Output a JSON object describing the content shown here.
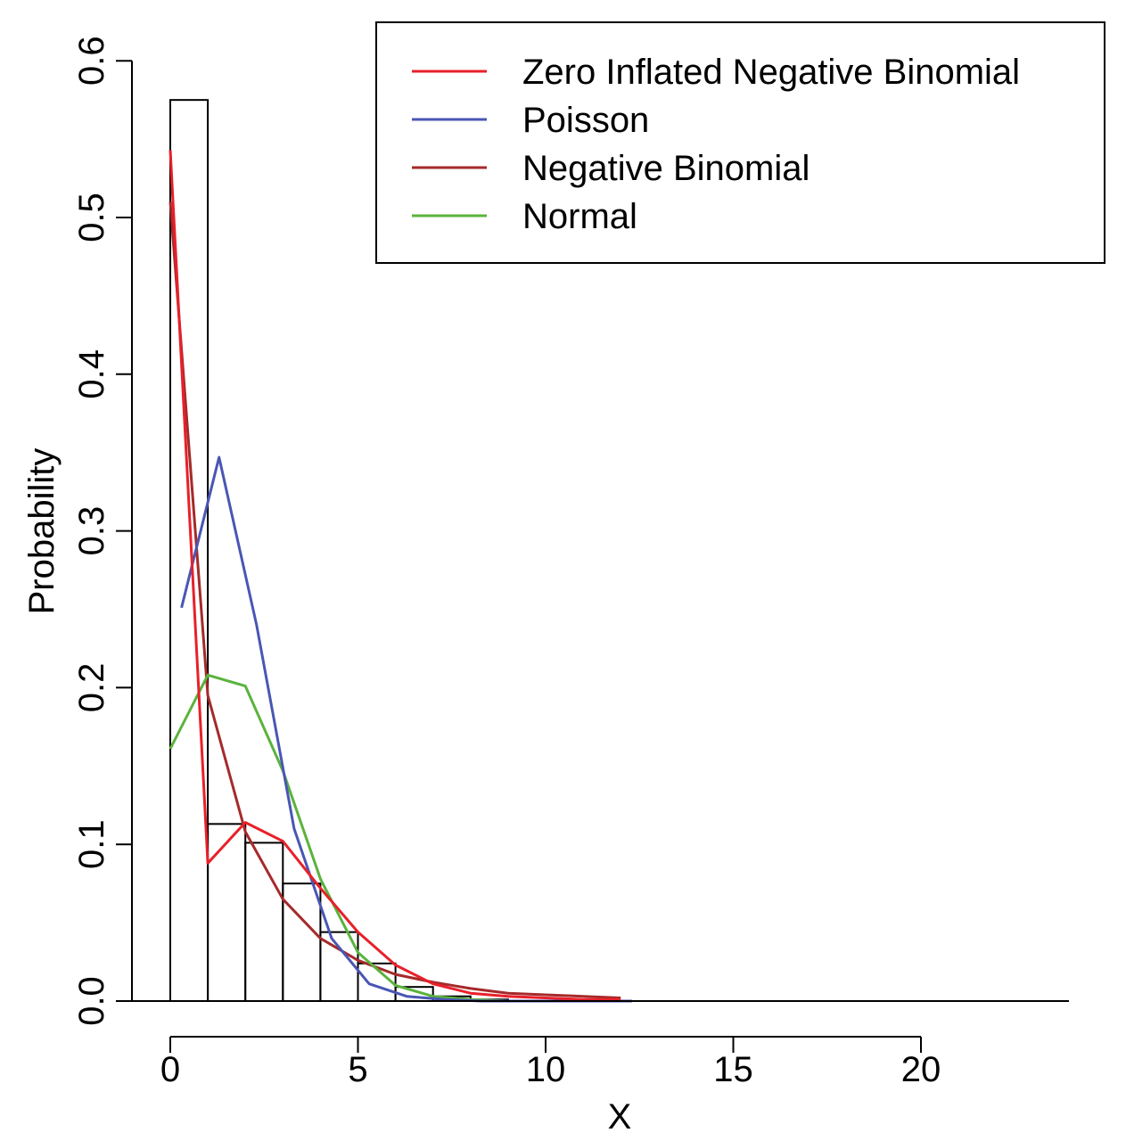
{
  "chart_data": {
    "type": "bar",
    "xlabel": "X",
    "ylabel": "Probability",
    "xlim": [
      -0.5,
      24
    ],
    "ylim": [
      0,
      0.6
    ],
    "x_ticks": [
      0,
      5,
      10,
      15,
      20
    ],
    "y_ticks": [
      0.0,
      0.1,
      0.2,
      0.3,
      0.4,
      0.5,
      0.6
    ],
    "y_tick_labels": [
      "0.0",
      "0.1",
      "0.2",
      "0.3",
      "0.4",
      "0.5",
      "0.6"
    ],
    "grid": false,
    "legend_position": "top-right",
    "histogram": {
      "bin_starts": [
        0,
        1,
        2,
        3,
        4,
        5,
        6,
        7,
        8
      ],
      "bin_width": 1,
      "values": [
        0.575,
        0.113,
        0.101,
        0.075,
        0.044,
        0.024,
        0.009,
        0.003,
        0.001
      ]
    },
    "series": [
      {
        "name": "Zero Inflated Negative Binomial",
        "color": "#e8202a",
        "x": [
          0,
          1,
          2,
          3,
          4,
          5,
          6,
          7,
          8,
          9,
          10,
          11,
          12
        ],
        "y": [
          0.543,
          0.088,
          0.114,
          0.102,
          0.072,
          0.044,
          0.023,
          0.011,
          0.005,
          0.003,
          0.002,
          0.001,
          0.001
        ]
      },
      {
        "name": "Poisson",
        "color": "#4a56b4",
        "x": [
          0.3,
          1.3,
          2.3,
          3.3,
          4.3,
          5.3,
          6.3,
          7.3,
          8.3,
          9.3,
          10.3,
          11.3,
          12.3
        ],
        "y": [
          0.251,
          0.347,
          0.24,
          0.11,
          0.04,
          0.011,
          0.003,
          0.001,
          0.0,
          0.0,
          0.0,
          0.0,
          0.0
        ]
      },
      {
        "name": "Negative Binomial",
        "color": "#a52a2a",
        "x": [
          0,
          1,
          2,
          3,
          4,
          5,
          6,
          7,
          8,
          9,
          10,
          11,
          12
        ],
        "y": [
          0.51,
          0.195,
          0.108,
          0.065,
          0.04,
          0.026,
          0.017,
          0.012,
          0.008,
          0.005,
          0.004,
          0.003,
          0.002
        ]
      },
      {
        "name": "Normal",
        "color": "#5ab33c",
        "x": [
          0,
          1,
          2,
          3,
          4,
          5,
          6,
          7,
          8,
          9,
          10,
          11,
          12
        ],
        "y": [
          0.161,
          0.208,
          0.201,
          0.147,
          0.078,
          0.031,
          0.01,
          0.003,
          0.001,
          0.0,
          0.0,
          0.0,
          0.0
        ]
      }
    ]
  }
}
